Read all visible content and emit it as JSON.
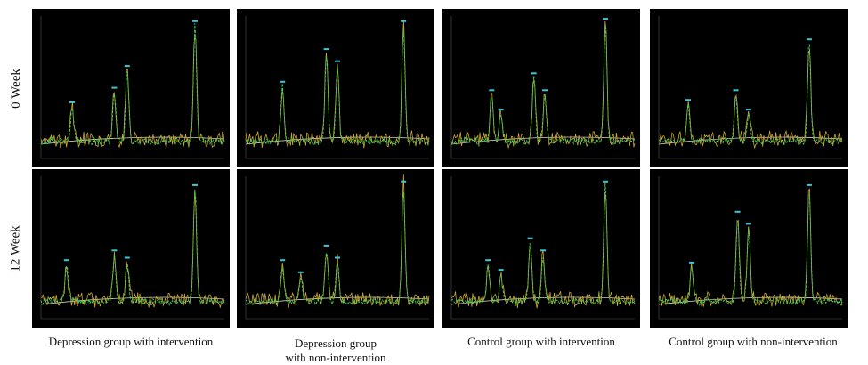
{
  "rows": [
    {
      "label": "0 Week"
    },
    {
      "label": "12 Week"
    }
  ],
  "columns": [
    {
      "label_line1": "Depression group with intervention",
      "label_line2": ""
    },
    {
      "label_line1": "Depression group",
      "label_line2": "with non-intervention"
    },
    {
      "label_line1": "Control group with intervention",
      "label_line2": ""
    },
    {
      "label_line1": "Control group with non-intervention",
      "label_line2": ""
    }
  ],
  "colors": {
    "background": "#000000",
    "trace_yellow": "#c8a832",
    "trace_green": "#3fd25a",
    "trace_cyan": "#38c8d8",
    "baseline": "#d9d3c0"
  }
}
